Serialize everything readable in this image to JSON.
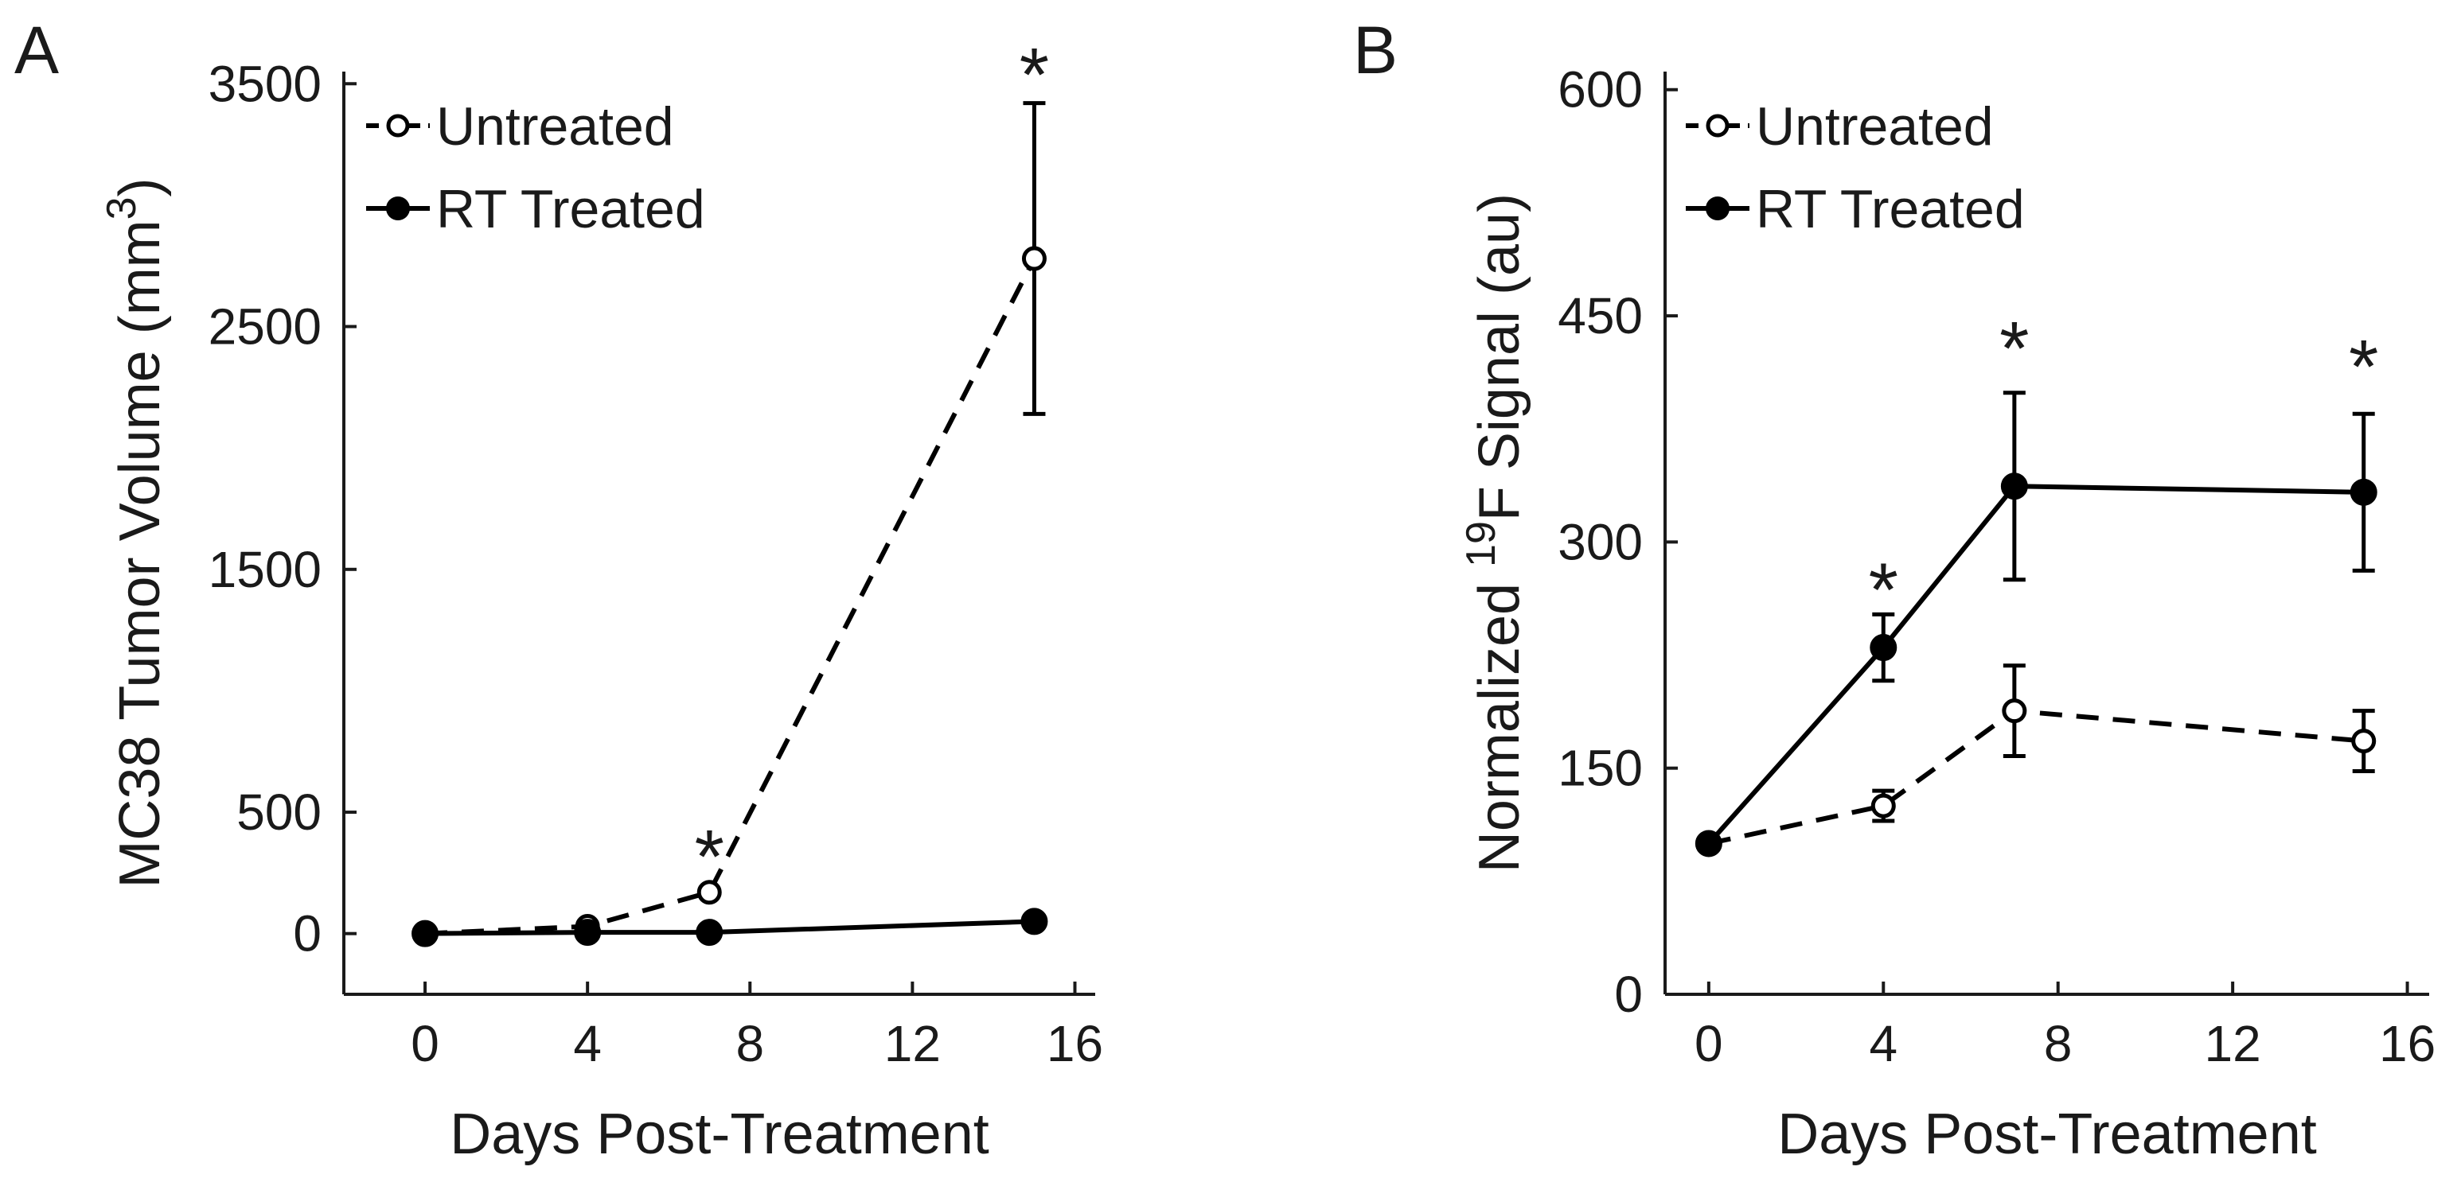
{
  "chart_data": [
    {
      "type": "line",
      "panel_label": "A",
      "xlabel": "Days Post-Treatment",
      "ylabel": "MC38 Tumor Volume (mm",
      "ylabel_superscript": "3",
      "ylabel_suffix": ")",
      "xlim": [
        -2,
        16.5
      ],
      "ylim": [
        -250,
        3550
      ],
      "x_ticks": [
        0,
        4,
        8,
        12,
        16
      ],
      "y_ticks": [
        0,
        500,
        1500,
        2500,
        3500
      ],
      "x_tick_labels": [
        "0",
        "4",
        "8",
        "12",
        "16"
      ],
      "y_tick_labels": [
        "0",
        "500",
        "1500",
        "2500",
        "3500"
      ],
      "legend_position": "top-left",
      "series": [
        {
          "name": "Untreated",
          "style": "dashed",
          "marker": "open-circle",
          "x": [
            0,
            4,
            7,
            15
          ],
          "y": [
            0,
            30,
            170,
            2780
          ],
          "error": [
            0,
            0,
            0,
            640
          ]
        },
        {
          "name": "RT Treated",
          "style": "solid",
          "marker": "filled-circle",
          "x": [
            0,
            4,
            7,
            15
          ],
          "y": [
            0,
            5,
            5,
            50
          ],
          "error": [
            0,
            0,
            0,
            0
          ]
        }
      ],
      "annotations": [
        {
          "text": "*",
          "x": 7,
          "y": 340
        },
        {
          "text": "*",
          "x": 15,
          "y": 3560
        }
      ]
    },
    {
      "type": "line",
      "panel_label": "B",
      "xlabel": "Days Post-Treatment",
      "ylabel_prefix": "Normalized ",
      "ylabel_superscript": "19",
      "ylabel": "F Signal (au)",
      "xlim": [
        -1,
        16.5
      ],
      "ylim": [
        0,
        612
      ],
      "x_ticks": [
        0,
        4,
        8,
        12,
        16
      ],
      "y_ticks": [
        0,
        150,
        300,
        450,
        600
      ],
      "x_tick_labels": [
        "0",
        "4",
        "8",
        "12",
        "16"
      ],
      "y_tick_labels": [
        "0",
        "150",
        "300",
        "450",
        "600"
      ],
      "legend_position": "top-left",
      "series": [
        {
          "name": "Untreated",
          "style": "dashed",
          "marker": "open-circle",
          "x": [
            0,
            4,
            7,
            15
          ],
          "y": [
            100,
            125,
            188,
            168
          ],
          "error": [
            0,
            10,
            30,
            20
          ]
        },
        {
          "name": "RT Treated",
          "style": "solid",
          "marker": "filled-circle",
          "x": [
            0,
            4,
            7,
            15
          ],
          "y": [
            100,
            230,
            337,
            333
          ],
          "error": [
            0,
            22,
            62,
            52
          ]
        }
      ],
      "annotations": [
        {
          "text": "*",
          "x": 4,
          "y": 272
        },
        {
          "text": "*",
          "x": 7,
          "y": 432
        },
        {
          "text": "*",
          "x": 15,
          "y": 420
        }
      ]
    }
  ]
}
